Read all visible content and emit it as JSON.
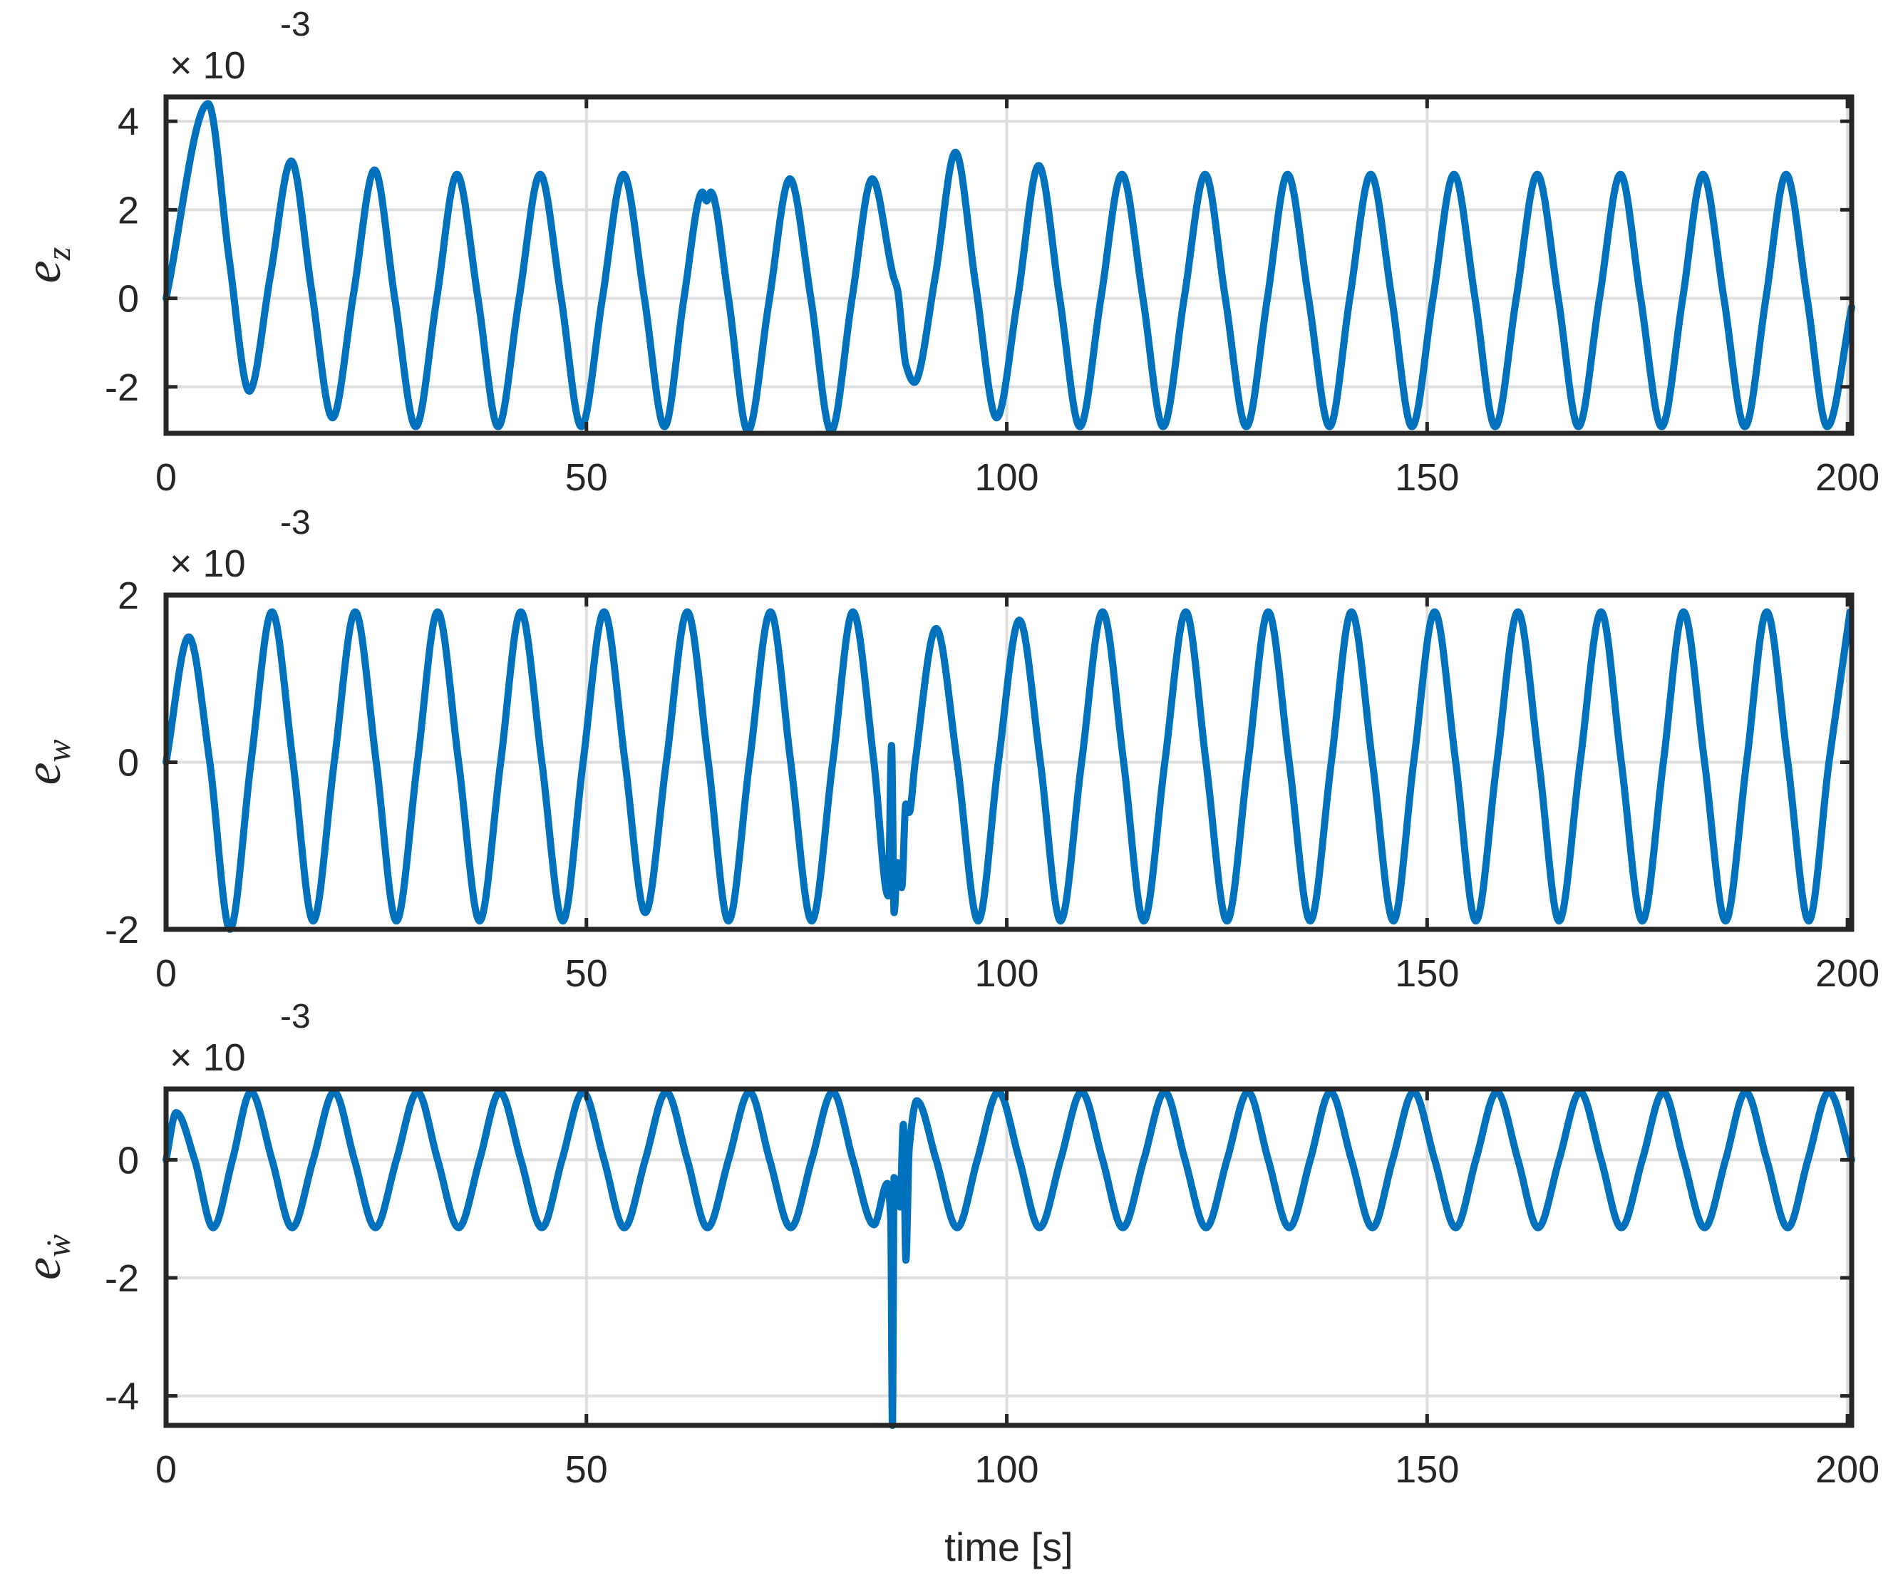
{
  "chart_data": [
    {
      "type": "line",
      "ylabel": {
        "base": "e",
        "subscript": "z"
      },
      "multiplier": {
        "base": "× 10",
        "exponent": "-3"
      },
      "x": [
        0,
        5.0,
        7.5,
        9.9,
        12.4,
        14.9,
        17.3,
        19.8,
        22.3,
        24.8,
        27.2,
        29.7,
        32.2,
        34.6,
        37.1,
        39.5,
        42.0,
        44.5,
        47.0,
        49.4,
        51.9,
        54.4,
        56.9,
        59.3,
        61.6,
        63.8,
        64.3,
        64.8,
        66.9,
        69.2,
        71.7,
        74.2,
        76.7,
        79.1,
        81.6,
        84.0,
        86.5,
        87.0,
        88.0,
        89.0,
        91.5,
        93.9,
        96.3,
        98.8,
        101.3,
        103.8,
        106.3,
        108.7,
        111.2,
        113.7,
        116.2,
        118.6,
        121.1,
        123.6,
        126.0,
        128.5,
        131.0,
        133.4,
        135.9,
        138.4,
        140.8,
        143.3,
        145.8,
        148.2,
        150.7,
        153.2,
        155.7,
        158.1,
        160.6,
        163.1,
        165.6,
        168.0,
        170.5,
        173.0,
        175.4,
        177.9,
        180.4,
        182.8,
        185.3,
        187.8,
        190.3,
        192.7,
        195.2,
        197.6,
        200.5
      ],
      "series": [
        {
          "color": "#0072bd",
          "values": [
            0,
            4.4,
            0.9,
            -2.1,
            0.5,
            3.1,
            0.2,
            -2.7,
            0.1,
            2.9,
            0,
            -2.9,
            0,
            2.8,
            0,
            -2.9,
            0,
            2.8,
            0,
            -2.9,
            0,
            2.8,
            0,
            -2.9,
            0,
            2.4,
            2.2,
            2.4,
            0,
            -3.0,
            -0.1,
            2.7,
            0,
            -3.0,
            0,
            2.7,
            0.5,
            0.2,
            -1.5,
            -1.9,
            0.5,
            3.3,
            0.3,
            -2.7,
            0,
            3.0,
            0,
            -2.9,
            0,
            2.8,
            0,
            -2.9,
            0,
            2.8,
            0,
            -2.9,
            0,
            2.8,
            0,
            -2.9,
            0,
            2.8,
            0,
            -2.9,
            0,
            2.8,
            0,
            -2.9,
            0,
            2.8,
            0,
            -2.9,
            0,
            2.8,
            0,
            -2.9,
            0,
            2.8,
            0,
            -2.9,
            0,
            2.8,
            0,
            -2.9,
            -0.2
          ]
        }
      ],
      "xlim": [
        0,
        200.5
      ],
      "xticks": [
        0,
        50,
        100,
        150,
        200
      ],
      "ylim": [
        -3.05,
        4.55
      ],
      "yticks": [
        -2,
        0,
        2,
        4
      ],
      "grid": true
    },
    {
      "type": "line",
      "ylabel": {
        "base": "e",
        "subscript": "w"
      },
      "multiplier": {
        "base": "× 10",
        "exponent": "-3"
      },
      "x": [
        0,
        2.7,
        5.2,
        7.6,
        10.1,
        12.6,
        15.1,
        17.5,
        20.0,
        22.5,
        25.0,
        27.4,
        29.9,
        32.3,
        34.8,
        37.3,
        39.8,
        42.2,
        44.7,
        47.2,
        49.6,
        52.1,
        54.6,
        57.0,
        59.5,
        62.0,
        64.5,
        66.9,
        69.4,
        71.9,
        74.3,
        76.8,
        79.3,
        81.7,
        84.2,
        85.9,
        86.3,
        86.6,
        87.0,
        87.5,
        88.0,
        88.4,
        89.1,
        91.6,
        94.1,
        96.6,
        99.0,
        101.5,
        104.0,
        106.4,
        108.9,
        111.4,
        113.9,
        116.3,
        118.8,
        121.3,
        123.7,
        126.2,
        128.7,
        131.1,
        133.6,
        136.1,
        138.6,
        141.0,
        143.5,
        146.0,
        148.4,
        150.9,
        153.4,
        155.8,
        158.3,
        160.8,
        163.3,
        165.7,
        168.2,
        170.7,
        173.1,
        175.6,
        178.1,
        180.5,
        183.0,
        185.5,
        188.0,
        190.4,
        192.9,
        195.4,
        197.8,
        200.3
      ],
      "series": [
        {
          "color": "#0072bd",
          "values": [
            0,
            1.5,
            0,
            -2.0,
            0,
            1.8,
            0,
            -1.9,
            0,
            1.8,
            0,
            -1.9,
            0,
            1.8,
            0,
            -1.9,
            0,
            1.8,
            0,
            -1.9,
            0,
            1.8,
            0,
            -1.8,
            0,
            1.8,
            0,
            -1.9,
            0,
            1.8,
            0,
            -1.9,
            0,
            1.8,
            0,
            -1.6,
            0.2,
            -1.8,
            -1.2,
            -1.5,
            -0.5,
            -0.6,
            0,
            1.6,
            0,
            -1.9,
            0,
            1.7,
            0,
            -1.9,
            0,
            1.8,
            0,
            -1.9,
            0,
            1.8,
            0,
            -1.9,
            0,
            1.8,
            0,
            -1.9,
            0,
            1.8,
            0,
            -1.9,
            0,
            1.8,
            0,
            -1.9,
            0,
            1.8,
            0,
            -1.9,
            0,
            1.8,
            0,
            -1.9,
            0,
            1.8,
            0,
            -1.9,
            0,
            1.8,
            0,
            -1.9,
            0,
            1.8
          ]
        }
      ],
      "xlim": [
        0,
        200.5
      ],
      "xticks": [
        0,
        50,
        100,
        150,
        200
      ],
      "ylim": [
        -2,
        2
      ],
      "yticks": [
        -2,
        0,
        2
      ],
      "grid": true
    },
    {
      "type": "line",
      "ylabel": {
        "base": "e",
        "subscript": "ẇ"
      },
      "multiplier": {
        "base": "× 10",
        "exponent": "-3"
      },
      "xlabel": "time [s]",
      "x": [
        0,
        1.2,
        3.4,
        5.6,
        7.9,
        10.1,
        12.6,
        15.0,
        17.5,
        20.0,
        22.4,
        24.9,
        27.4,
        29.9,
        32.3,
        34.8,
        37.3,
        39.7,
        42.2,
        44.7,
        47.1,
        49.6,
        52.1,
        54.5,
        57.0,
        59.5,
        62.0,
        64.4,
        66.9,
        69.4,
        71.8,
        74.3,
        76.8,
        79.3,
        81.7,
        84.2,
        85.8,
        86.2,
        86.4,
        86.6,
        87.3,
        87.7,
        88.0,
        88.4,
        89.3,
        91.6,
        94.1,
        96.5,
        99.0,
        101.5,
        103.9,
        106.4,
        108.9,
        111.4,
        113.8,
        116.3,
        118.8,
        121.2,
        123.7,
        126.2,
        128.7,
        131.1,
        133.6,
        136.1,
        138.5,
        141.0,
        143.5,
        145.9,
        148.4,
        150.9,
        153.4,
        155.8,
        158.3,
        160.8,
        163.2,
        165.7,
        168.2,
        170.7,
        173.1,
        175.6,
        178.1,
        180.5,
        183.0,
        185.5,
        187.9,
        190.4,
        192.9,
        195.3,
        197.8,
        200.5
      ],
      "series": [
        {
          "color": "#0072bd",
          "values": [
            0,
            0.8,
            0,
            -1.15,
            0,
            1.15,
            0,
            -1.15,
            0,
            1.15,
            0,
            -1.15,
            0,
            1.15,
            0,
            -1.15,
            0,
            1.15,
            0,
            -1.15,
            0,
            1.15,
            0,
            -1.15,
            0,
            1.15,
            0,
            -1.15,
            0,
            1.15,
            0,
            -1.15,
            0,
            1.15,
            0,
            -1.1,
            -0.4,
            -1.0,
            -4.5,
            -0.3,
            -0.8,
            0.6,
            -1.7,
            0.2,
            1.0,
            0,
            -1.15,
            0,
            1.15,
            0,
            -1.15,
            0,
            1.15,
            0,
            -1.15,
            0,
            1.15,
            0,
            -1.15,
            0,
            1.15,
            0,
            -1.15,
            0,
            1.15,
            0,
            -1.15,
            0,
            1.15,
            0,
            -1.15,
            0,
            1.15,
            0,
            -1.15,
            0,
            1.15,
            0,
            -1.15,
            0,
            1.15,
            0,
            -1.15,
            0,
            1.15,
            0,
            -1.15,
            0,
            1.15,
            0
          ]
        }
      ],
      "xlim": [
        0,
        200.5
      ],
      "xticks": [
        0,
        50,
        100,
        150,
        200
      ],
      "ylim": [
        -4.5,
        1.2
      ],
      "yticks": [
        -4,
        -2,
        0
      ],
      "grid": true
    }
  ]
}
